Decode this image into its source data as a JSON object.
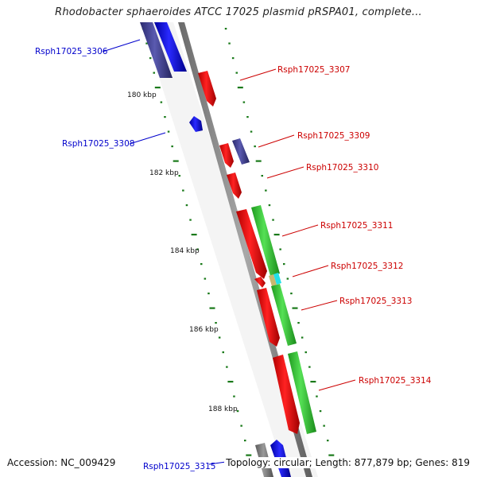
{
  "title": "Rhodobacter sphaeroides ATCC 17025 plasmid pRSPA01, complete...",
  "accession": "Accession: NC_009429",
  "topology": "Topology: circular; Length: 877,879 bp; Genes: 819",
  "colors": {
    "forward_cds": "#ff0000",
    "reverse_cds": "#0000ff",
    "forward_blast": "#33cc33",
    "reverse_blast": "#3a3a8c",
    "backbone": "#808080",
    "tick": "#1a7a1a",
    "reverse_label": "#0000cc",
    "forward_label": "#cc0000"
  },
  "ruler_labels": [
    "180 kbp",
    "182 kbp",
    "184 kbp",
    "186 kbp",
    "188 kbp"
  ],
  "genes": [
    {
      "id": "g3306",
      "label": "Rsph17025_3306",
      "strand": "reverse"
    },
    {
      "id": "g3307",
      "label": "Rsph17025_3307",
      "strand": "forward"
    },
    {
      "id": "g3308",
      "label": "Rsph17025_3308",
      "strand": "reverse"
    },
    {
      "id": "g3309",
      "label": "Rsph17025_3309",
      "strand": "forward"
    },
    {
      "id": "g3310",
      "label": "Rsph17025_3310",
      "strand": "forward"
    },
    {
      "id": "g3311",
      "label": "Rsph17025_3311",
      "strand": "forward"
    },
    {
      "id": "g3312",
      "label": "Rsph17025_3312",
      "strand": "forward"
    },
    {
      "id": "g3313",
      "label": "Rsph17025_3313",
      "strand": "forward"
    },
    {
      "id": "g3314",
      "label": "Rsph17025_3314",
      "strand": "forward"
    },
    {
      "id": "g3315",
      "label": "Rsph17025_3315",
      "strand": "reverse"
    }
  ]
}
